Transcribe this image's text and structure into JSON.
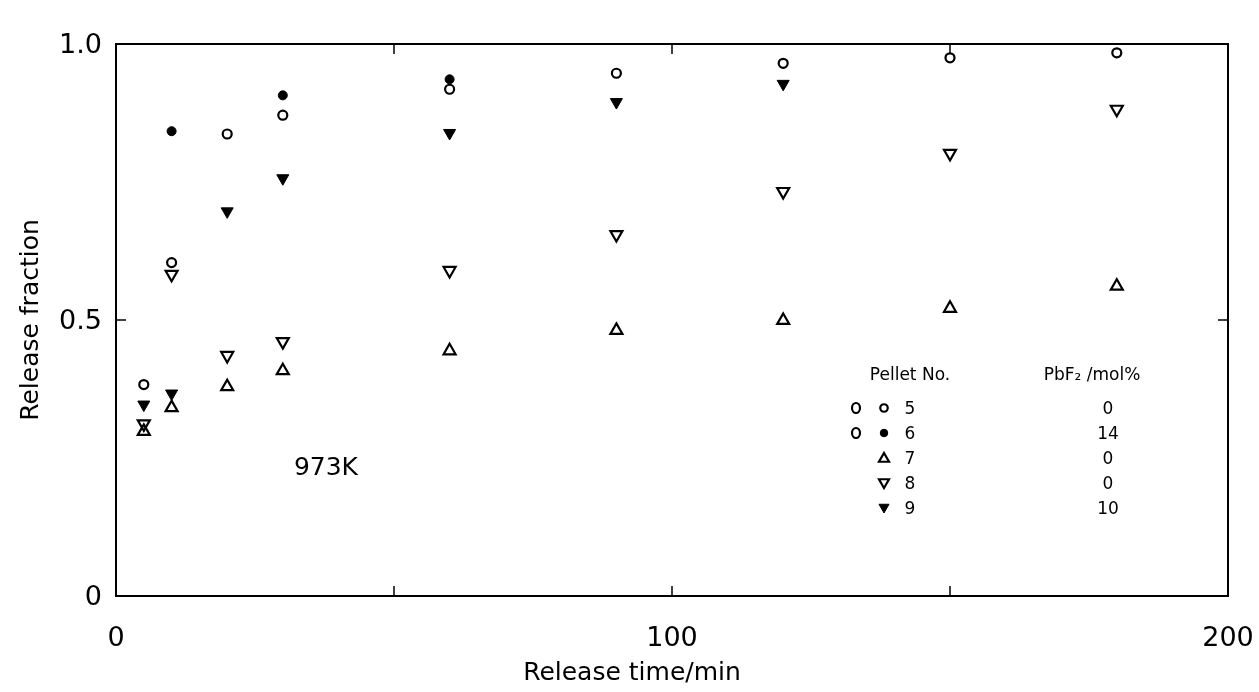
{
  "chart_data": {
    "type": "scatter",
    "xlabel": "Release  time/min",
    "ylabel": "Release  fraction",
    "xlim": [
      0,
      200
    ],
    "ylim": [
      0,
      1
    ],
    "xticks": [
      0,
      {
        "value": 50,
        "label": null
      },
      100,
      {
        "value": 150,
        "label": null
      },
      200
    ],
    "yticks": [
      0,
      0.5,
      {
        "value": 1,
        "label": "1.0"
      }
    ],
    "legend": "bottom right",
    "legend_title": "Pellet No.",
    "grid": false,
    "annotations": [
      "973K",
      "PbF₂ /mol%",
      "0",
      "14",
      "0",
      "0",
      "10"
    ],
    "series": [
      {
        "name": "5",
        "color": "#000000",
        "marker": "circle-open",
        "x": [
          5,
          10,
          20,
          30,
          60,
          90,
          120,
          150,
          180
        ],
        "values": [
          0.383,
          0.604,
          0.837,
          0.871,
          0.918,
          0.947,
          0.965,
          0.975,
          0.984
        ]
      },
      {
        "name": "6",
        "color": "#000000",
        "marker": "circle",
        "x": [
          10,
          30,
          60
        ],
        "values": [
          0.842,
          0.907,
          0.936
        ]
      },
      {
        "name": "7",
        "color": "#000000",
        "marker": "triangle-open",
        "x": [
          5,
          10,
          20,
          30,
          60,
          90,
          120,
          150,
          180
        ],
        "values": [
          0.3,
          0.343,
          0.381,
          0.41,
          0.446,
          0.483,
          0.501,
          0.523,
          0.563
        ]
      },
      {
        "name": "8",
        "color": "#000000",
        "marker": "triangle-down-open",
        "x": [
          5,
          10,
          20,
          30,
          60,
          90,
          120,
          150,
          180
        ],
        "values": [
          0.31,
          0.581,
          0.434,
          0.459,
          0.588,
          0.653,
          0.731,
          0.8,
          0.88
        ]
      },
      {
        "name": "9",
        "color": "#000000",
        "marker": "triangle-down",
        "x": [
          5,
          10,
          20,
          30,
          60,
          90,
          120
        ],
        "values": [
          0.345,
          0.365,
          0.695,
          0.755,
          0.837,
          0.893,
          0.926
        ]
      }
    ]
  }
}
